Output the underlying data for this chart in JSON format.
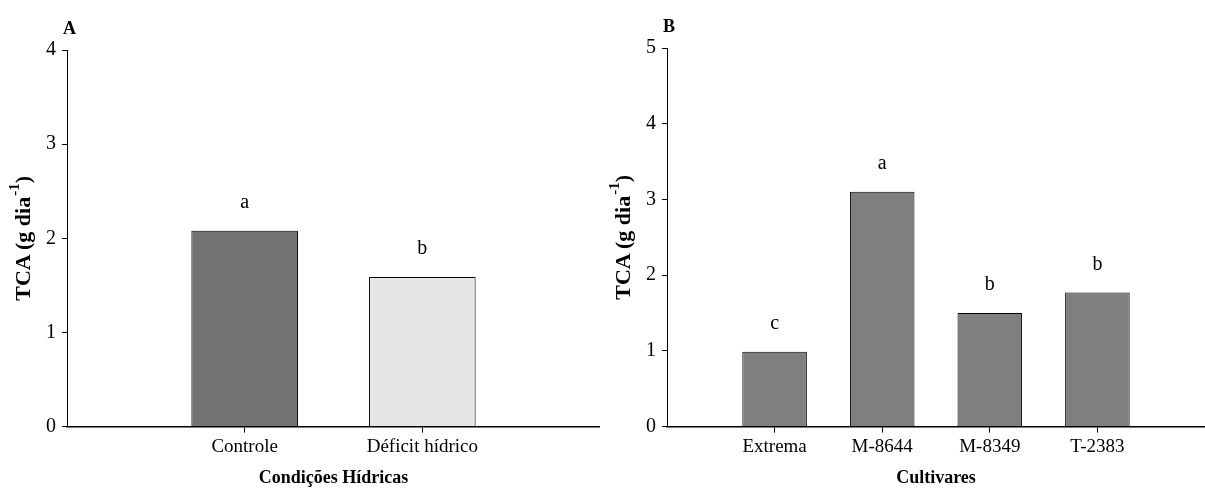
{
  "chart_data": [
    {
      "type": "bar",
      "title": "A",
      "xlabel": "Condições Hídricas",
      "ylabel": "TCA (g dia$^{-1}$)",
      "categories": [
        "Controle",
        "Déficit hídrico"
      ],
      "values": [
        2.08,
        1.59
      ],
      "colors": [
        "#737373",
        "#e6e6e6"
      ],
      "ylim": [
        0,
        4
      ],
      "yticks": [
        0,
        1,
        2,
        3,
        4
      ],
      "grid": false,
      "legend": false,
      "annotations": [
        "a",
        "b"
      ]
    },
    {
      "type": "bar",
      "title": "B",
      "xlabel": "Cultivares",
      "ylabel": "TCA (g dia$^{-1}$)",
      "categories": [
        "Extrema",
        "M-8644",
        "M-8349",
        "T-2383"
      ],
      "values": [
        0.99,
        3.1,
        1.5,
        1.77
      ],
      "colors": [
        "#7f7f7f",
        "#7f7f7f",
        "#7f7f7f",
        "#7f7f7f"
      ],
      "ylim": [
        0,
        5
      ],
      "yticks": [
        0,
        1,
        2,
        3,
        4,
        5
      ],
      "grid": false,
      "legend": false,
      "annotations": [
        "c",
        "a",
        "b",
        "b"
      ]
    }
  ]
}
